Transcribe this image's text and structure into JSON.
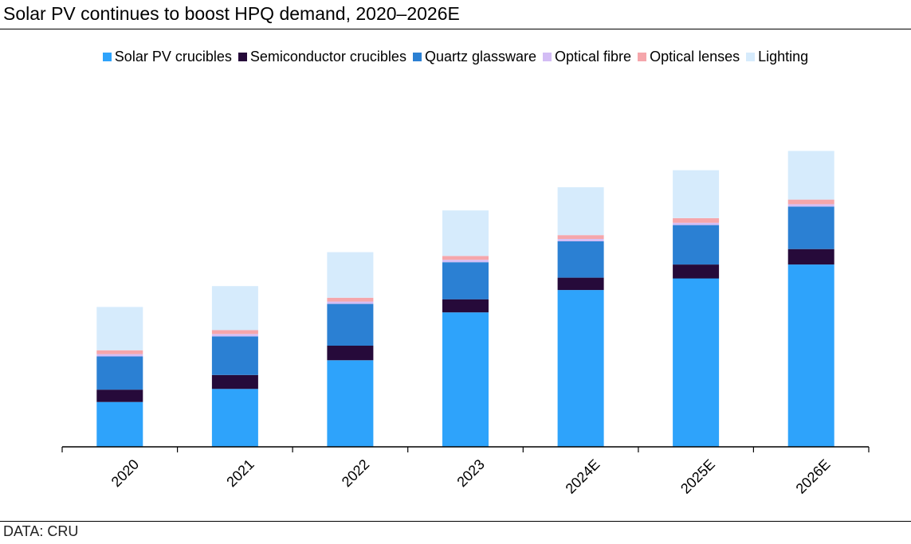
{
  "title": "Solar PV continues to boost HPQ demand, 2020–2026E",
  "source": "DATA: CRU",
  "chart_data": {
    "type": "bar",
    "stacked": true,
    "categories": [
      "2020",
      "2021",
      "2022",
      "2023",
      "2024E",
      "2025E",
      "2026E"
    ],
    "series": [
      {
        "name": "Solar PV crucibles",
        "color": "#2EA3FB",
        "values": [
          58,
          75,
          112,
          174,
          203,
          218,
          236
        ]
      },
      {
        "name": "Semiconductor crucibles",
        "color": "#260A3A",
        "values": [
          16,
          18,
          19,
          17,
          16,
          18,
          20
        ]
      },
      {
        "name": "Quartz glassware",
        "color": "#2B80D3",
        "values": [
          43,
          50,
          54,
          48,
          47,
          51,
          55
        ]
      },
      {
        "name": "Optical fibre",
        "color": "#D3BDF5",
        "values": [
          3,
          3,
          3,
          3,
          3,
          3,
          3
        ]
      },
      {
        "name": "Optical lenses",
        "color": "#F5A6AB",
        "values": [
          5,
          5,
          5,
          5,
          5,
          6,
          6
        ]
      },
      {
        "name": "Lighting",
        "color": "#D6EBFC",
        "values": [
          56,
          57,
          59,
          59,
          62,
          62,
          63
        ]
      }
    ],
    "legend": "top",
    "grid": false
  }
}
